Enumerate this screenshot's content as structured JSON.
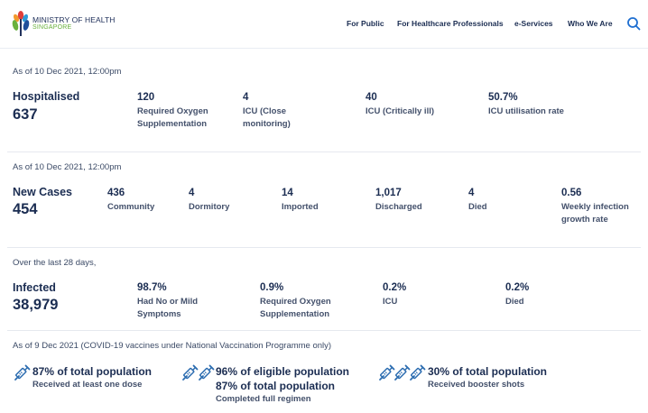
{
  "header": {
    "logo_title": "MINISTRY OF HEALTH",
    "logo_subtitle": "SINGAPORE",
    "nav": [
      "For Public",
      "For Healthcare Professionals",
      "e-Services",
      "Who We Are"
    ]
  },
  "hospitalised": {
    "as_of": "As of 10 Dec 2021, 12:00pm",
    "title": "Hospitalised",
    "total": "637",
    "stats": [
      {
        "value": "120",
        "label": "Required Oxygen Supplementation"
      },
      {
        "value": "4",
        "label": "ICU (Close monitoring)"
      },
      {
        "value": "40",
        "label": "ICU (Critically ill)"
      },
      {
        "value": "50.7%",
        "label": "ICU utilisation rate"
      }
    ]
  },
  "new_cases": {
    "as_of": "As of 10 Dec 2021, 12:00pm",
    "title": "New Cases",
    "total": "454",
    "stats": [
      {
        "value": "436",
        "label": "Community"
      },
      {
        "value": "4",
        "label": "Dormitory"
      },
      {
        "value": "14",
        "label": "Imported"
      },
      {
        "value": "1,017",
        "label": "Discharged"
      },
      {
        "value": "4",
        "label": "Died"
      },
      {
        "value": "0.56",
        "label": "Weekly infection growth rate"
      }
    ]
  },
  "infected": {
    "as_of": "Over the last 28 days,",
    "title": "Infected",
    "total": "38,979",
    "stats": [
      {
        "value": "98.7%",
        "label": "Had No or Mild Symptoms"
      },
      {
        "value": "0.9%",
        "label": "Required Oxygen Supplementation"
      },
      {
        "value": "0.2%",
        "label": "ICU"
      },
      {
        "value": "0.2%",
        "label": "Died"
      }
    ]
  },
  "vaccination": {
    "as_of": "As of 9 Dec 2021 (COVID-19 vaccines under National Vaccination Programme only)",
    "items": [
      {
        "icon": "syringe-icon",
        "values": [
          "87% of total population"
        ],
        "label": "Received at least one dose"
      },
      {
        "icon": "syringe-icon",
        "values": [
          "96% of eligible population",
          "87% of total population"
        ],
        "label": "Completed full regimen"
      },
      {
        "icon": "syringe-icon",
        "values": [
          "30% of total population"
        ],
        "label": "Received booster shots"
      }
    ]
  },
  "colors": {
    "primary_text": "#1b2d52",
    "secondary_text": "#43506b",
    "brand_green": "#6ab13d",
    "search_blue": "#1f6fd1",
    "syringe_blue": "#2b6cb0"
  }
}
